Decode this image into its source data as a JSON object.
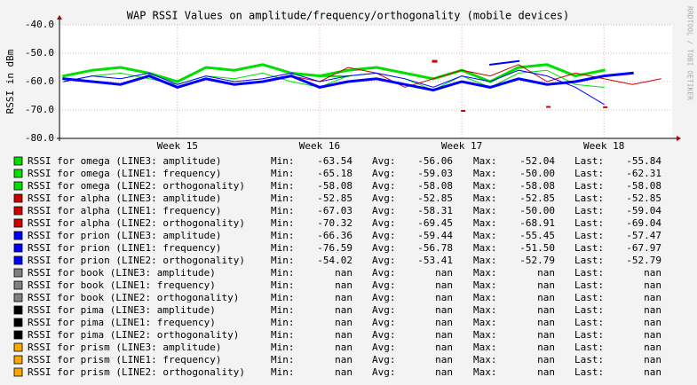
{
  "chart_data": {
    "type": "line",
    "title": "WAP RSSI Values on amplitude/frequency/orthogonality (mobile devices)",
    "y_label": "RSSI in dBm",
    "side_label": "RRDTOOL / TOBI OETIKER",
    "ylim": [
      -80,
      -40
    ],
    "yticks": [
      {
        "value": -80,
        "label": "-80.0"
      },
      {
        "value": -70,
        "label": "-70.0"
      },
      {
        "value": -60,
        "label": "-60.0"
      },
      {
        "value": -50,
        "label": "-50.0"
      },
      {
        "value": -40,
        "label": "-40.0"
      }
    ],
    "xlim": [
      14.17,
      18.48
    ],
    "xticks": [
      {
        "value": 15,
        "label": "Week 15"
      },
      {
        "value": 16,
        "label": "Week 16"
      },
      {
        "value": 17,
        "label": "Week 17"
      },
      {
        "value": 18,
        "label": "Week 18"
      }
    ],
    "grid": true,
    "legend_labels": [
      "Min:",
      "Avg:",
      "Max:",
      "Last:"
    ],
    "x": [
      14.2,
      14.4,
      14.6,
      14.8,
      15.0,
      15.2,
      15.4,
      15.6,
      15.8,
      16.0,
      16.2,
      16.4,
      16.6,
      16.8,
      17.0,
      17.2,
      17.4,
      17.6,
      17.8,
      18.0,
      18.2,
      18.4
    ],
    "series": [
      {
        "name": "RSSI for omega (LINE3: amplitude)",
        "color": "#00e000",
        "line_width": 3,
        "min": "-63.54",
        "avg": "-56.06",
        "max": "-52.04",
        "last": "-55.84",
        "values": [
          -58,
          -56,
          -55,
          -57,
          -60,
          -55,
          -56,
          -54,
          -57,
          -58,
          -56,
          -55,
          -57,
          -59,
          -56,
          -60,
          -55,
          -54,
          -58,
          -56,
          null,
          null
        ]
      },
      {
        "name": "RSSI for omega (LINE1: frequency)",
        "color": "#00e000",
        "line_width": 1,
        "min": "-65.18",
        "avg": "-59.03",
        "max": "-50.00",
        "last": "-62.31",
        "values": [
          -60,
          -58,
          -57,
          -59,
          -61,
          -58,
          -59,
          -57,
          -60,
          -62,
          -58,
          -57,
          -59,
          -63,
          -58,
          -62,
          -57,
          -56,
          -61,
          -62,
          null,
          null
        ]
      },
      {
        "name": "RSSI for omega (LINE2: orthogonality)",
        "color": "#00e000",
        "line_width": 2,
        "min": "-58.08",
        "avg": "-58.08",
        "max": "-58.08",
        "last": "-58.08",
        "values": [
          null,
          null,
          null,
          null,
          null,
          null,
          null,
          null,
          null,
          -58.08,
          -58.08,
          null,
          null,
          null,
          null,
          null,
          null,
          null,
          null,
          null,
          null,
          null
        ]
      },
      {
        "name": "RSSI for alpha (LINE3: amplitude)",
        "color": "#cc0000",
        "line_width": 3,
        "min": "-52.85",
        "avg": "-52.85",
        "max": "-52.85",
        "last": "-52.85",
        "values": [
          null,
          null,
          null,
          null,
          null,
          null,
          null,
          null,
          null,
          null,
          null,
          null,
          null,
          -52.85,
          null,
          null,
          null,
          null,
          null,
          null,
          null,
          null
        ]
      },
      {
        "name": "RSSI for alpha (LINE1: frequency)",
        "color": "#cc0000",
        "line_width": 1,
        "min": "-67.03",
        "avg": "-58.31",
        "max": "-50.00",
        "last": "-59.04",
        "values": [
          null,
          null,
          null,
          null,
          null,
          null,
          null,
          null,
          -58,
          -60,
          -55,
          -57,
          -62,
          -59,
          -56,
          -58,
          -54,
          -60,
          -57,
          -59,
          -61,
          -59
        ]
      },
      {
        "name": "RSSI for alpha (LINE2: orthogonality)",
        "color": "#cc0000",
        "line_width": 2,
        "min": "-70.32",
        "avg": "-69.45",
        "max": "-68.91",
        "last": "-69.04",
        "values": [
          null,
          null,
          null,
          null,
          null,
          null,
          null,
          null,
          null,
          null,
          null,
          null,
          null,
          null,
          -70.32,
          null,
          null,
          -68.91,
          null,
          -69.04,
          null,
          null
        ]
      },
      {
        "name": "RSSI for prion (LINE3: amplitude)",
        "color": "#0000ff",
        "line_width": 3,
        "min": "-66.36",
        "avg": "-59.44",
        "max": "-55.45",
        "last": "-57.47",
        "values": [
          -59,
          -60,
          -61,
          -58,
          -62,
          -59,
          -61,
          -60,
          -58,
          -62,
          -60,
          -59,
          -61,
          -63,
          -60,
          -62,
          -59,
          -61,
          -60,
          -58,
          -57,
          null
        ]
      },
      {
        "name": "RSSI for prion (LINE1: frequency)",
        "color": "#0000ff",
        "line_width": 1,
        "min": "-76.59",
        "avg": "-56.78",
        "max": "-51.50",
        "last": "-67.97",
        "values": [
          -60,
          -58,
          -59,
          -57,
          -61,
          -58,
          -60,
          -59,
          -57,
          -60,
          -58,
          -57,
          -59,
          -62,
          -58,
          -60,
          -56,
          -58,
          -62,
          -68,
          null,
          null
        ]
      },
      {
        "name": "RSSI for prion (LINE2: orthogonality)",
        "color": "#0000ff",
        "line_width": 2,
        "min": "-54.02",
        "avg": "-53.41",
        "max": "-52.79",
        "last": "-52.79",
        "values": [
          null,
          null,
          null,
          null,
          null,
          null,
          null,
          null,
          null,
          null,
          null,
          null,
          null,
          null,
          null,
          -54.02,
          -52.79,
          null,
          null,
          null,
          null,
          null
        ]
      },
      {
        "name": "RSSI for book (LINE3: amplitude)",
        "color": "#808080",
        "min": "nan",
        "avg": "nan",
        "max": "nan",
        "last": "nan"
      },
      {
        "name": "RSSI for book (LINE1: frequency)",
        "color": "#808080",
        "min": "nan",
        "avg": "nan",
        "max": "nan",
        "last": "nan"
      },
      {
        "name": "RSSI for book (LINE2: orthogonality)",
        "color": "#808080",
        "min": "nan",
        "avg": "nan",
        "max": "nan",
        "last": "nan"
      },
      {
        "name": "RSSI for pima (LINE3: amplitude)",
        "color": "#000000",
        "min": "nan",
        "avg": "nan",
        "max": "nan",
        "last": "nan"
      },
      {
        "name": "RSSI for pima (LINE1: frequency)",
        "color": "#000000",
        "min": "nan",
        "avg": "nan",
        "max": "nan",
        "last": "nan"
      },
      {
        "name": "RSSI for pima (LINE2: orthogonality)",
        "color": "#000000",
        "min": "nan",
        "avg": "nan",
        "max": "nan",
        "last": "nan"
      },
      {
        "name": "RSSI for prism (LINE3: amplitude)",
        "color": "#ffa500",
        "min": "nan",
        "avg": "nan",
        "max": "nan",
        "last": "nan"
      },
      {
        "name": "RSSI for prism (LINE1: frequency)",
        "color": "#ffa500",
        "min": "nan",
        "avg": "nan",
        "max": "nan",
        "last": "nan"
      },
      {
        "name": "RSSI for prism (LINE2: orthogonality)",
        "color": "#ffa500",
        "min": "nan",
        "avg": "nan",
        "max": "nan",
        "last": "nan"
      }
    ]
  }
}
